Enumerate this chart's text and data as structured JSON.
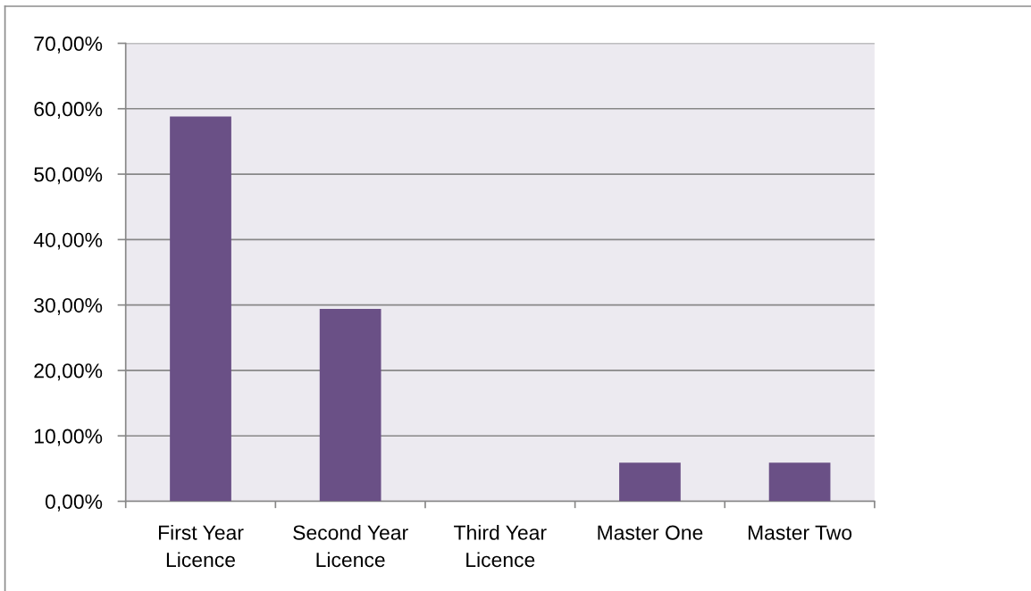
{
  "chart_data": {
    "type": "bar",
    "categories": [
      "First Year\nLicence",
      "Second Year\nLicence",
      "Third Year\nLicence",
      "Master One",
      "Master Two"
    ],
    "values": [
      58.8,
      29.4,
      0,
      5.9,
      5.9
    ],
    "color": "#6a5086",
    "ylim": [
      0,
      70
    ],
    "yticks": [
      {
        "value": 0,
        "label": "0,00%"
      },
      {
        "value": 10,
        "label": "10,00%"
      },
      {
        "value": 20,
        "label": "20,00%"
      },
      {
        "value": 30,
        "label": "30,00%"
      },
      {
        "value": 40,
        "label": "40,00%"
      },
      {
        "value": 50,
        "label": "50,00%"
      },
      {
        "value": 60,
        "label": "60,00%"
      },
      {
        "value": 70,
        "label": "70,00%"
      }
    ],
    "grid": "y"
  }
}
